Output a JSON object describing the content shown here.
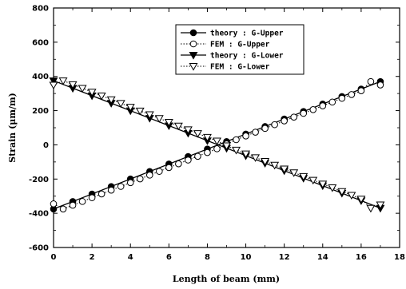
{
  "chart_data": {
    "type": "line",
    "title": "",
    "xlabel": "Length of beam (mm)",
    "ylabel": "Strain (μm/m)",
    "xlim": [
      0,
      18
    ],
    "ylim": [
      -600,
      800
    ],
    "x_ticks": [
      0,
      2,
      4,
      6,
      8,
      10,
      12,
      14,
      16,
      18
    ],
    "y_ticks": [
      -600,
      -400,
      -200,
      0,
      200,
      400,
      600,
      800
    ],
    "grid": false,
    "legend_position": "top-center",
    "series": [
      {
        "name": "theory : G-Upper",
        "style": "solid",
        "marker": "filled-circle",
        "x": [
          0,
          17
        ],
        "y": [
          -375,
          370
        ]
      },
      {
        "name": "FEM : G-Upper",
        "style": "dotted",
        "marker": "open-circle",
        "x": [
          0,
          0.5,
          1,
          1.5,
          2,
          2.5,
          3,
          3.5,
          4,
          4.5,
          5,
          5.5,
          6,
          6.5,
          7,
          7.5,
          8,
          8.5,
          9,
          9.5,
          10,
          10.5,
          11,
          11.5,
          12,
          12.5,
          13,
          13.5,
          14,
          14.5,
          15,
          15.5,
          16,
          16.5,
          17
        ],
        "y": [
          -345,
          -375,
          -353,
          -331,
          -309,
          -287,
          -265,
          -243,
          -221,
          -199,
          -177,
          -155,
          -133,
          -111,
          -89,
          -67,
          -45,
          -23,
          5,
          30,
          52,
          74,
          96,
          118,
          140,
          162,
          184,
          206,
          228,
          250,
          272,
          294,
          316,
          370,
          350
        ]
      },
      {
        "name": "theory : G-Lower",
        "style": "solid",
        "marker": "filled-triangle-down",
        "x": [
          0,
          17
        ],
        "y": [
          375,
          -370
        ]
      },
      {
        "name": "FEM : G-Lower",
        "style": "dotted",
        "marker": "open-triangle-down",
        "x": [
          0,
          0.5,
          1,
          1.5,
          2,
          2.5,
          3,
          3.5,
          4,
          4.5,
          5,
          5.5,
          6,
          6.5,
          7,
          7.5,
          8,
          8.5,
          9,
          9.5,
          10,
          10.5,
          11,
          11.5,
          12,
          12.5,
          13,
          13.5,
          14,
          14.5,
          15,
          15.5,
          16,
          16.5,
          17
        ],
        "y": [
          350,
          375,
          353,
          331,
          309,
          287,
          265,
          243,
          221,
          199,
          177,
          155,
          133,
          111,
          89,
          67,
          45,
          23,
          -5,
          -30,
          -52,
          -74,
          -96,
          -118,
          -140,
          -162,
          -184,
          -206,
          -228,
          -250,
          -272,
          -294,
          -316,
          -370,
          -350
        ]
      }
    ]
  }
}
